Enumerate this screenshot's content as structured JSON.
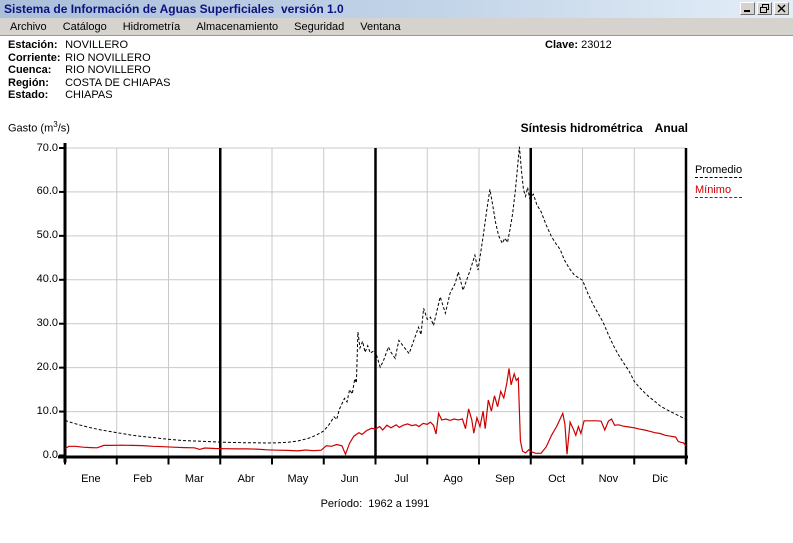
{
  "window": {
    "title": "Sistema de Información de Aguas Superficiales  versión 1.0",
    "controls": [
      "minimize",
      "restore",
      "close"
    ]
  },
  "menu": {
    "items": [
      "Archivo",
      "Catálogo",
      "Hidrometría",
      "Almacenamiento",
      "Seguridad",
      "Ventana"
    ]
  },
  "station": {
    "fields": [
      {
        "label": "Estación:",
        "value": "NOVILLERO"
      },
      {
        "label": "Corriente:",
        "value": "RIO NOVILLERO"
      },
      {
        "label": "Cuenca:",
        "value": "RIO NOVILLERO"
      },
      {
        "label": "Región:",
        "value": "COSTA DE CHIAPAS"
      },
      {
        "label": "Estado:",
        "value": "CHIAPAS"
      }
    ],
    "clave_label": "Clave:",
    "clave_value": "23012"
  },
  "chart": {
    "y_axis_label_prefix": "Gasto (m",
    "y_axis_label_sup": "3",
    "y_axis_label_suffix": "/s)",
    "subtitle": "Síntesis hidrométrica",
    "mode": "Anual",
    "legend": [
      {
        "label": "Promedio",
        "color": "#000000",
        "style": "dashed"
      },
      {
        "label": "Mínimo",
        "color": "#cc0000",
        "style": "solid"
      }
    ],
    "period": "Período:  1962 a 1991"
  },
  "chart_data": {
    "type": "line",
    "title": "Síntesis hidrométrica Anual",
    "ylabel": "Gasto (m3/s)",
    "ylim": [
      0,
      70
    ],
    "y_tick_labels": [
      "70.0",
      "60.0",
      "50.0",
      "40.0",
      "30.0",
      "20.0",
      "10.0",
      "0.0"
    ],
    "categories": [
      "Ene",
      "Feb",
      "Mar",
      "Abr",
      "May",
      "Jun",
      "Jul",
      "Ago",
      "Sep",
      "Oct",
      "Nov",
      "Dic"
    ],
    "x_unit": "month-fraction 0-12",
    "grid": true,
    "quarter_separators_months": [
      3,
      6,
      9
    ],
    "legend_position": "right",
    "period_note": "Período: 1962 a 1991",
    "series": [
      {
        "name": "Promedio",
        "color": "#000000",
        "line_style": "dashed",
        "points": [
          [
            0,
            8.0
          ],
          [
            0.15,
            7.4
          ],
          [
            0.3,
            6.9
          ],
          [
            0.5,
            6.3
          ],
          [
            0.7,
            5.8
          ],
          [
            0.9,
            5.4
          ],
          [
            1.1,
            5.0
          ],
          [
            1.3,
            4.6
          ],
          [
            1.5,
            4.3
          ],
          [
            1.7,
            4.1
          ],
          [
            1.9,
            3.8
          ],
          [
            2.1,
            3.6
          ],
          [
            2.3,
            3.4
          ],
          [
            2.5,
            3.3
          ],
          [
            2.7,
            3.2
          ],
          [
            2.9,
            3.1
          ],
          [
            3.1,
            3.0
          ],
          [
            3.3,
            2.95
          ],
          [
            3.5,
            2.9
          ],
          [
            3.7,
            2.9
          ],
          [
            3.9,
            2.85
          ],
          [
            4.1,
            2.9
          ],
          [
            4.3,
            3.0
          ],
          [
            4.5,
            3.3
          ],
          [
            4.7,
            3.9
          ],
          [
            4.85,
            4.6
          ],
          [
            5.0,
            5.6
          ],
          [
            5.1,
            7.0
          ],
          [
            5.2,
            8.8
          ],
          [
            5.25,
            8.2
          ],
          [
            5.3,
            10.5
          ],
          [
            5.4,
            13.0
          ],
          [
            5.45,
            12.2
          ],
          [
            5.5,
            15.0
          ],
          [
            5.55,
            14.0
          ],
          [
            5.6,
            17.5
          ],
          [
            5.63,
            16.5
          ],
          [
            5.66,
            28.1
          ],
          [
            5.7,
            24.5
          ],
          [
            5.75,
            26.0
          ],
          [
            5.8,
            23.5
          ],
          [
            5.85,
            25.0
          ],
          [
            5.9,
            23.3
          ],
          [
            5.99,
            24.0
          ],
          [
            6.09,
            20.1
          ],
          [
            6.15,
            21.5
          ],
          [
            6.25,
            24.7
          ],
          [
            6.3,
            23.5
          ],
          [
            6.38,
            22.1
          ],
          [
            6.45,
            26.2
          ],
          [
            6.55,
            24.7
          ],
          [
            6.65,
            23.2
          ],
          [
            6.75,
            26.5
          ],
          [
            6.83,
            29.2
          ],
          [
            6.88,
            27.5
          ],
          [
            6.93,
            33.5
          ],
          [
            7.0,
            31.0
          ],
          [
            7.06,
            31.5
          ],
          [
            7.12,
            29.6
          ],
          [
            7.25,
            36.1
          ],
          [
            7.35,
            32.4
          ],
          [
            7.44,
            36.9
          ],
          [
            7.54,
            39.2
          ],
          [
            7.6,
            41.8
          ],
          [
            7.69,
            37.6
          ],
          [
            7.83,
            42.2
          ],
          [
            7.92,
            45.6
          ],
          [
            7.98,
            42.2
          ],
          [
            8.08,
            49.8
          ],
          [
            8.15,
            55.9
          ],
          [
            8.21,
            60.6
          ],
          [
            8.27,
            56.6
          ],
          [
            8.32,
            53.0
          ],
          [
            8.38,
            50.0
          ],
          [
            8.45,
            48.3
          ],
          [
            8.5,
            49.5
          ],
          [
            8.55,
            48.5
          ],
          [
            8.6,
            51.5
          ],
          [
            8.65,
            55.0
          ],
          [
            8.7,
            60.0
          ],
          [
            8.74,
            65.0
          ],
          [
            8.78,
            70.3
          ],
          [
            8.82,
            65.0
          ],
          [
            8.86,
            60.5
          ],
          [
            8.9,
            59.0
          ],
          [
            8.94,
            61.0
          ],
          [
            8.98,
            58.5
          ],
          [
            9.05,
            59.5
          ],
          [
            9.12,
            57.0
          ],
          [
            9.2,
            55.5
          ],
          [
            9.3,
            52.4
          ],
          [
            9.4,
            49.8
          ],
          [
            9.5,
            48.0
          ],
          [
            9.57,
            46.9
          ],
          [
            9.65,
            44.5
          ],
          [
            9.75,
            42.5
          ],
          [
            9.85,
            41.0
          ],
          [
            10.0,
            39.9
          ],
          [
            10.1,
            37.0
          ],
          [
            10.2,
            34.5
          ],
          [
            10.3,
            32.4
          ],
          [
            10.4,
            30.3
          ],
          [
            10.5,
            27.5
          ],
          [
            10.6,
            25.0
          ],
          [
            10.7,
            22.8
          ],
          [
            10.8,
            21.0
          ],
          [
            10.9,
            19.2
          ],
          [
            11.0,
            16.9
          ],
          [
            11.1,
            15.5
          ],
          [
            11.2,
            14.3
          ],
          [
            11.3,
            13.2
          ],
          [
            11.4,
            12.3
          ],
          [
            11.5,
            11.3
          ],
          [
            11.6,
            10.6
          ],
          [
            11.7,
            10.0
          ],
          [
            11.8,
            9.4
          ],
          [
            11.9,
            8.8
          ],
          [
            12.0,
            8.3
          ]
        ]
      },
      {
        "name": "Mínimo",
        "color": "#cc0000",
        "line_style": "solid",
        "points": [
          [
            0,
            1.6
          ],
          [
            0.08,
            2.1
          ],
          [
            0.2,
            2.1
          ],
          [
            0.35,
            1.9
          ],
          [
            0.5,
            1.8
          ],
          [
            0.62,
            1.75
          ],
          [
            0.75,
            2.3
          ],
          [
            0.9,
            2.3
          ],
          [
            1.1,
            2.35
          ],
          [
            1.3,
            2.3
          ],
          [
            1.5,
            2.25
          ],
          [
            1.7,
            2.1
          ],
          [
            1.9,
            2.0
          ],
          [
            2.1,
            1.9
          ],
          [
            2.3,
            1.8
          ],
          [
            2.5,
            1.75
          ],
          [
            2.6,
            1.4
          ],
          [
            2.7,
            1.7
          ],
          [
            2.9,
            1.6
          ],
          [
            3.1,
            1.55
          ],
          [
            3.3,
            1.5
          ],
          [
            3.5,
            1.5
          ],
          [
            3.7,
            1.45
          ],
          [
            3.9,
            1.3
          ],
          [
            4.1,
            1.2
          ],
          [
            4.3,
            1.15
          ],
          [
            4.5,
            1.05
          ],
          [
            4.65,
            1.25
          ],
          [
            4.8,
            1.1
          ],
          [
            4.95,
            1.2
          ],
          [
            5.05,
            2.2
          ],
          [
            5.15,
            2.1
          ],
          [
            5.25,
            2.5
          ],
          [
            5.35,
            2.2
          ],
          [
            5.42,
            0.3
          ],
          [
            5.5,
            2.8
          ],
          [
            5.58,
            4.4
          ],
          [
            5.68,
            5.2
          ],
          [
            5.74,
            4.8
          ],
          [
            5.82,
            5.6
          ],
          [
            5.92,
            6.2
          ],
          [
            6.0,
            6.0
          ],
          [
            6.08,
            6.6
          ],
          [
            6.14,
            5.8
          ],
          [
            6.22,
            6.9
          ],
          [
            6.3,
            6.3
          ],
          [
            6.4,
            7.0
          ],
          [
            6.46,
            6.4
          ],
          [
            6.54,
            6.9
          ],
          [
            6.62,
            7.2
          ],
          [
            6.7,
            6.8
          ],
          [
            6.78,
            7.0
          ],
          [
            6.84,
            6.6
          ],
          [
            6.92,
            7.3
          ],
          [
            7.0,
            7.1
          ],
          [
            7.06,
            7.6
          ],
          [
            7.12,
            6.9
          ],
          [
            7.17,
            4.9
          ],
          [
            7.22,
            9.6
          ],
          [
            7.28,
            8.1
          ],
          [
            7.36,
            8.3
          ],
          [
            7.44,
            8.0
          ],
          [
            7.52,
            8.3
          ],
          [
            7.6,
            8.1
          ],
          [
            7.68,
            8.3
          ],
          [
            7.74,
            6.1
          ],
          [
            7.8,
            10.6
          ],
          [
            7.86,
            8.1
          ],
          [
            7.9,
            5.1
          ],
          [
            7.96,
            8.6
          ],
          [
            8.02,
            6.6
          ],
          [
            8.08,
            10.1
          ],
          [
            8.12,
            6.1
          ],
          [
            8.18,
            12.6
          ],
          [
            8.24,
            10.1
          ],
          [
            8.3,
            13.6
          ],
          [
            8.36,
            11.1
          ],
          [
            8.42,
            14.6
          ],
          [
            8.48,
            13.1
          ],
          [
            8.54,
            16.6
          ],
          [
            8.58,
            19.8
          ],
          [
            8.62,
            16.1
          ],
          [
            8.68,
            18.6
          ],
          [
            8.72,
            17.1
          ],
          [
            8.76,
            17.6
          ],
          [
            8.8,
            3.4
          ],
          [
            8.84,
            1.0
          ],
          [
            8.9,
            0.6
          ],
          [
            8.96,
            1.3
          ],
          [
            9.02,
            0.8
          ],
          [
            9.1,
            0.5
          ],
          [
            9.2,
            0.5
          ],
          [
            9.3,
            2.0
          ],
          [
            9.4,
            4.6
          ],
          [
            9.5,
            6.6
          ],
          [
            9.56,
            8.1
          ],
          [
            9.62,
            9.6
          ],
          [
            9.66,
            7.1
          ],
          [
            9.7,
            0.3
          ],
          [
            9.76,
            7.6
          ],
          [
            9.82,
            6.1
          ],
          [
            9.87,
            4.6
          ],
          [
            9.92,
            6.6
          ],
          [
            9.97,
            5.0
          ],
          [
            10.03,
            7.9
          ],
          [
            10.15,
            7.9
          ],
          [
            10.28,
            7.9
          ],
          [
            10.36,
            7.8
          ],
          [
            10.43,
            5.8
          ],
          [
            10.5,
            7.8
          ],
          [
            10.56,
            8.3
          ],
          [
            10.62,
            6.9
          ],
          [
            10.7,
            7.0
          ],
          [
            10.78,
            6.7
          ],
          [
            10.88,
            6.5
          ],
          [
            11.0,
            6.3
          ],
          [
            11.1,
            6.0
          ],
          [
            11.2,
            5.8
          ],
          [
            11.3,
            5.5
          ],
          [
            11.4,
            5.2
          ],
          [
            11.5,
            5.0
          ],
          [
            11.6,
            4.6
          ],
          [
            11.7,
            4.4
          ],
          [
            11.8,
            4.2
          ],
          [
            11.85,
            3.2
          ],
          [
            11.9,
            3.0
          ],
          [
            11.95,
            2.9
          ],
          [
            12.0,
            2.2
          ]
        ]
      }
    ]
  }
}
